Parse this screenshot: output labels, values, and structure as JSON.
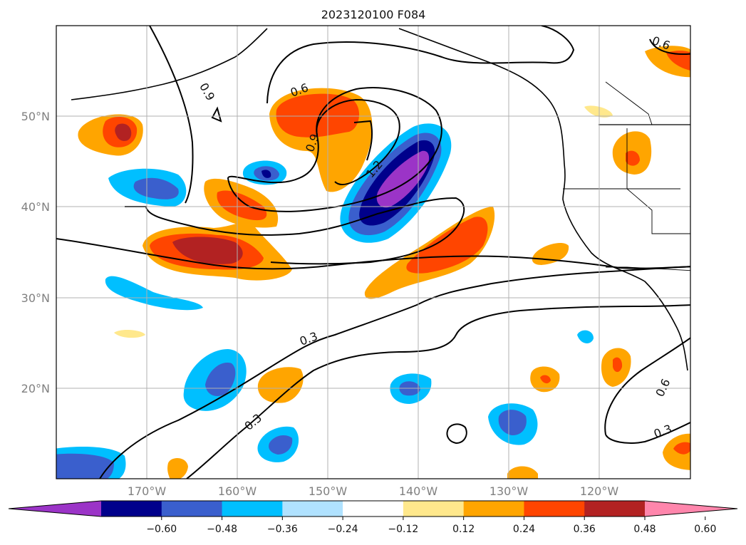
{
  "title": "2023120100 F084",
  "map": {
    "lon_ticks": [
      "170°W",
      "160°W",
      "150°W",
      "140°W",
      "130°W",
      "120°W"
    ],
    "lat_ticks": [
      "50°N",
      "40°N",
      "30°N",
      "20°N"
    ],
    "grid": true,
    "contour_labels": [
      "0.9",
      "0.6",
      "0.9",
      "1.2",
      "0.3",
      "0.3",
      "0.6",
      "0.3",
      "0.6"
    ]
  },
  "colorbar": {
    "ticks": [
      "−0.60",
      "−0.48",
      "−0.36",
      "−0.24",
      "−0.12",
      "0.12",
      "0.24",
      "0.36",
      "0.48",
      "0.60"
    ],
    "colors": [
      "#9b34c7",
      "#00008b",
      "#3a5fcd",
      "#00bfff",
      "#b0e2ff",
      "#ffffff",
      "#ffe88c",
      "#ffa500",
      "#ff4500",
      "#b22222",
      "#ff86ac"
    ],
    "extend": "both"
  }
}
